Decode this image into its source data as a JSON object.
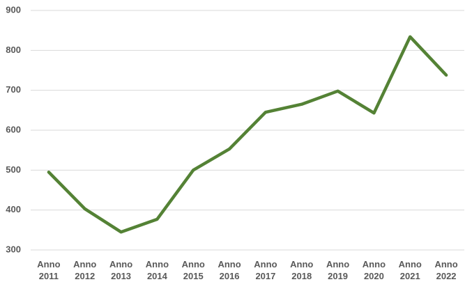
{
  "chart_data": {
    "type": "line",
    "categories": [
      "Anno 2011",
      "Anno 2012",
      "Anno 2013",
      "Anno 2014",
      "Anno 2015",
      "Anno 2016",
      "Anno 2017",
      "Anno 2018",
      "Anno 2019",
      "Anno 2020",
      "Anno 2021",
      "Anno 2022"
    ],
    "values": [
      495,
      403,
      345,
      377,
      500,
      553,
      645,
      665,
      698,
      643,
      834,
      738
    ],
    "color": "#548235",
    "ylim": [
      300,
      900
    ],
    "yticks": [
      300,
      400,
      500,
      600,
      700,
      800,
      900
    ],
    "grid": true
  }
}
